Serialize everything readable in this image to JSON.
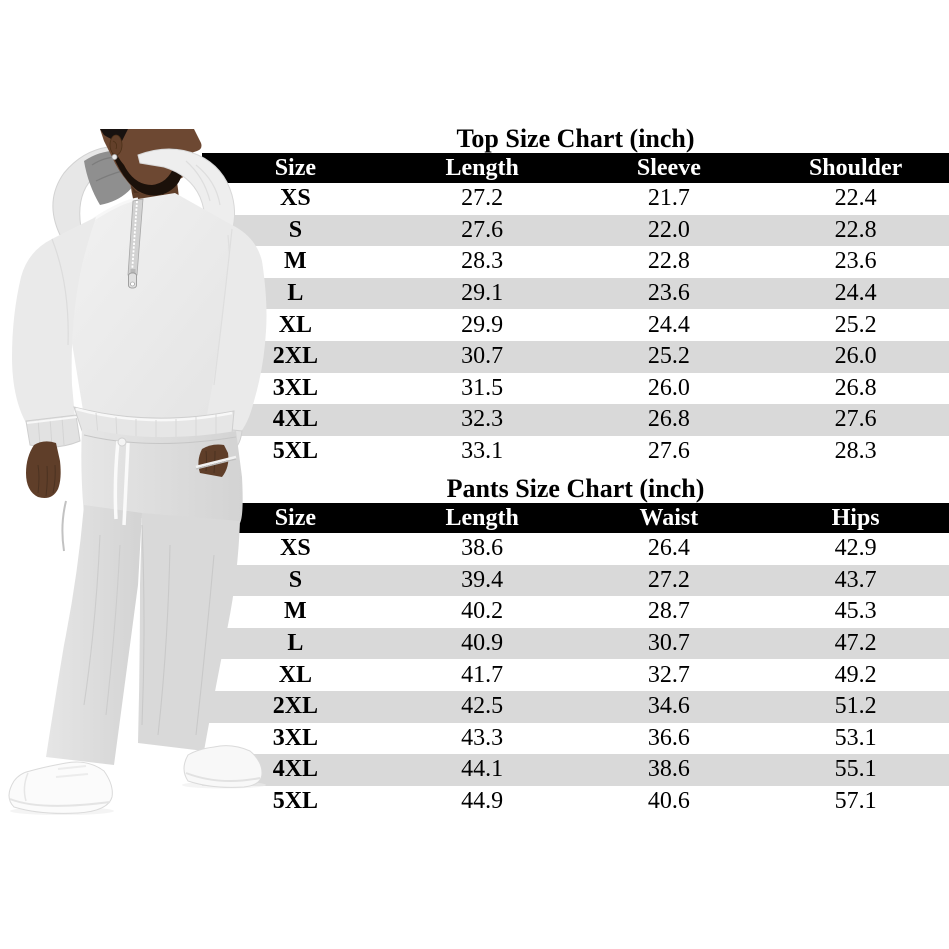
{
  "top_chart": {
    "title": "Top Size Chart (inch)",
    "columns": [
      "Size",
      "Length",
      "Sleeve",
      "Shoulder"
    ],
    "rows": [
      [
        "XS",
        "27.2",
        "21.7",
        "22.4"
      ],
      [
        "S",
        "27.6",
        "22.0",
        "22.8"
      ],
      [
        "M",
        "28.3",
        "22.8",
        "23.6"
      ],
      [
        "L",
        "29.1",
        "23.6",
        "24.4"
      ],
      [
        "XL",
        "29.9",
        "24.4",
        "25.2"
      ],
      [
        "2XL",
        "30.7",
        "25.2",
        "26.0"
      ],
      [
        "3XL",
        "31.5",
        "26.0",
        "26.8"
      ],
      [
        "4XL",
        "32.3",
        "26.8",
        "27.6"
      ],
      [
        "5XL",
        "33.1",
        "27.6",
        "28.3"
      ]
    ]
  },
  "pants_chart": {
    "title": "Pants Size Chart (inch)",
    "columns": [
      "Size",
      "Length",
      "Waist",
      "Hips"
    ],
    "rows": [
      [
        "XS",
        "38.6",
        "26.4",
        "42.9"
      ],
      [
        "S",
        "39.4",
        "27.2",
        "43.7"
      ],
      [
        "M",
        "40.2",
        "28.7",
        "45.3"
      ],
      [
        "L",
        "40.9",
        "30.7",
        "47.2"
      ],
      [
        "XL",
        "41.7",
        "32.7",
        "49.2"
      ],
      [
        "2XL",
        "42.5",
        "34.6",
        "51.2"
      ],
      [
        "3XL",
        "43.3",
        "36.6",
        "53.1"
      ],
      [
        "4XL",
        "44.1",
        "38.6",
        "55.1"
      ],
      [
        "5XL",
        "44.9",
        "40.6",
        "57.1"
      ]
    ]
  },
  "model_photo": {
    "description": "man wearing light gray quarter-zip hoodie and matching sweatpants with white sneakers, head cropped at top, right hand in pants pocket",
    "hoodie_color": "#ececec",
    "pants_color": "#dcdcdc",
    "skin_color": "#6d4832",
    "shoe_color": "#fafafa"
  },
  "colors": {
    "background": "#ffffff",
    "header_bg": "#000000",
    "header_text": "#ffffff",
    "row_stripe": "#d9d9d9",
    "body_text": "#000000"
  }
}
